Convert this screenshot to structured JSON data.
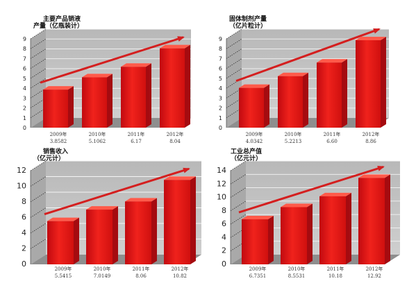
{
  "chart_data": [
    {
      "type": "bar",
      "title": "主要产品销液",
      "subtitle": "产量（亿瓶装计）",
      "categories": [
        "2009年",
        "2010年",
        "2011年",
        "2012年"
      ],
      "values": [
        3.8582,
        5.1062,
        6.17,
        8.04
      ],
      "value_labels": [
        "3.8582",
        "5.1062",
        "6.17",
        "8.04"
      ],
      "yticks": [
        "0",
        "1",
        "2",
        "3",
        "4",
        "5",
        "6",
        "7",
        "8",
        "9"
      ],
      "ylim": [
        0,
        9
      ],
      "grid": true,
      "bar_color": "#e8121a",
      "trend_arrow": true
    },
    {
      "type": "bar",
      "title": "固体制剂产量",
      "subtitle": "（亿片粒计）",
      "categories": [
        "2009年",
        "2010年",
        "2011年",
        "2012年"
      ],
      "values": [
        4.0342,
        5.2213,
        6.6,
        8.86
      ],
      "value_labels": [
        "4.0342",
        "5.2213",
        "6.60",
        "8.86"
      ],
      "yticks": [
        "0",
        "1",
        "2",
        "3",
        "4",
        "5",
        "6",
        "7",
        "8",
        "9"
      ],
      "ylim": [
        0,
        9
      ],
      "grid": true,
      "bar_color": "#e8121a",
      "trend_arrow": true
    },
    {
      "type": "bar",
      "title": "销售收入",
      "subtitle": "（亿元计）",
      "categories": [
        "2009年",
        "2010年",
        "2011年",
        "2012年"
      ],
      "values": [
        5.5415,
        7.0149,
        8.06,
        10.82
      ],
      "value_labels": [
        "5.5415",
        "7.0149",
        "8.06",
        "10.82"
      ],
      "yticks": [
        "0",
        "2",
        "4",
        "6",
        "8",
        "10",
        "12"
      ],
      "ylim": [
        0,
        12
      ],
      "grid": true,
      "bar_color": "#e8121a",
      "trend_arrow": true
    },
    {
      "type": "bar",
      "title": "工业总产值",
      "subtitle": "（亿元计）",
      "categories": [
        "2009年",
        "2010年",
        "2011年",
        "2012年"
      ],
      "values": [
        6.7351,
        8.5531,
        10.18,
        12.92
      ],
      "value_labels": [
        "6.7351",
        "8.5531",
        "10.18",
        "12.92"
      ],
      "yticks": [
        "0",
        "2",
        "4",
        "6",
        "8",
        "10",
        "12",
        "14"
      ],
      "ylim": [
        0,
        14
      ],
      "grid": true,
      "bar_color": "#e8121a",
      "trend_arrow": true
    }
  ],
  "colors": {
    "bar_front": "#e8121a",
    "bar_side": "#a50b10",
    "bar_top": "#ff5a4a",
    "wall": "#c4c4c4",
    "floor": "#8e8e8e",
    "arrow": "#d41f1f"
  }
}
